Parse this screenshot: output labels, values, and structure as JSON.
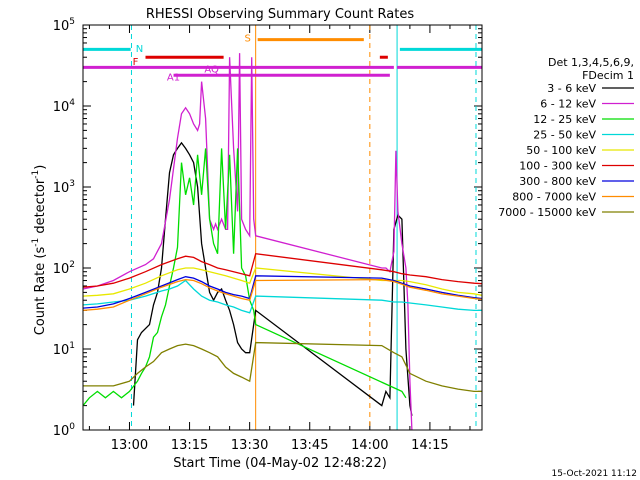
{
  "chart_data": {
    "type": "line",
    "title": "RHESSI Observing Summary Count Rates",
    "xlabel": "Start Time (04-May-02 12:48:22)",
    "ylabel_parts": [
      "Count Rate (s",
      "-1",
      " detector",
      "-1",
      ")"
    ],
    "timestamp": "15-Oct-2021 11:12",
    "log_y": true,
    "xlim": [
      48.4,
      148.0
    ],
    "ylim": [
      1,
      100000
    ],
    "x_ticks": [
      {
        "value": 60,
        "label": "13:00"
      },
      {
        "value": 75,
        "label": "13:15"
      },
      {
        "value": 90,
        "label": "13:30"
      },
      {
        "value": 105,
        "label": "13:45"
      },
      {
        "value": 120,
        "label": "14:00"
      },
      {
        "value": 135,
        "label": "14:15"
      }
    ],
    "y_ticks": [
      {
        "value": 1,
        "base": "10",
        "exp": "0"
      },
      {
        "value": 10,
        "base": "10",
        "exp": "1"
      },
      {
        "value": 100,
        "base": "10",
        "exp": "2"
      },
      {
        "value": 1000,
        "base": "10",
        "exp": "3"
      },
      {
        "value": 10000,
        "base": "10",
        "exp": "4"
      },
      {
        "value": 100000,
        "base": "10",
        "exp": "5"
      }
    ],
    "legend_header": [
      "Det 1,3,4,5,6,9,",
      "FDecim 1"
    ],
    "legend_placement": "right",
    "series": [
      {
        "name": "3 - 6 keV",
        "color": "#000000",
        "x": [
          61,
          62,
          63,
          65,
          66,
          67,
          68,
          69,
          70,
          71,
          72,
          73,
          74,
          75,
          76,
          77,
          78,
          79,
          80,
          81,
          82,
          83,
          84,
          85,
          86,
          87,
          88,
          89,
          90,
          91.5,
          123,
          124,
          125,
          126,
          127,
          128,
          129,
          130,
          130.5
        ],
        "y": [
          2,
          13,
          16,
          20,
          35,
          50,
          100,
          400,
          1500,
          2500,
          3000,
          3500,
          3000,
          2500,
          2000,
          1000,
          200,
          100,
          50,
          40,
          50,
          55,
          40,
          30,
          20,
          12,
          10,
          9,
          9,
          30,
          2,
          3,
          2.5,
          300,
          450,
          400,
          10,
          2,
          1.5
        ]
      },
      {
        "name": "6 - 12 keV",
        "color": "#d020d0",
        "x": [
          48.4,
          52,
          56,
          60,
          64,
          66,
          68,
          70,
          72,
          73,
          74,
          75,
          76,
          77,
          77.5,
          78,
          79,
          80,
          81,
          81.5,
          82,
          83,
          84,
          84.5,
          85,
          86,
          87,
          87.5,
          88,
          89,
          90,
          90.5,
          91,
          91.5,
          123,
          124,
          125,
          126,
          126.5,
          127,
          128,
          129,
          129.5,
          130,
          130.5
        ],
        "y": [
          55,
          60,
          70,
          90,
          110,
          130,
          200,
          700,
          4000,
          8000,
          9500,
          8000,
          6000,
          5000,
          6000,
          20000,
          7000,
          400,
          300,
          350,
          300,
          400,
          300,
          300,
          40000,
          3000,
          500,
          45000,
          400,
          300,
          250,
          40000,
          400,
          250,
          100,
          100,
          90,
          160,
          2800,
          500,
          200,
          100,
          35,
          4,
          1
        ]
      },
      {
        "name": "12 - 25 keV",
        "color": "#00dd00",
        "x": [
          48.4,
          50,
          52,
          54,
          56,
          58,
          60,
          62,
          63,
          64,
          65,
          66,
          67,
          68,
          69,
          70,
          71,
          72,
          73,
          74,
          75,
          76,
          77,
          78,
          79,
          80,
          81,
          82,
          83,
          84,
          85,
          86,
          87,
          88,
          89,
          90,
          91,
          91.5,
          128,
          129
        ],
        "y": [
          2,
          2.5,
          3,
          2.5,
          3,
          2.5,
          3,
          4,
          5,
          6,
          8,
          14,
          16,
          25,
          35,
          60,
          100,
          180,
          2000,
          800,
          1300,
          600,
          2500,
          800,
          3000,
          400,
          200,
          150,
          3000,
          300,
          2500,
          150,
          3000,
          100,
          80,
          40,
          30,
          20,
          3,
          2.5
        ]
      },
      {
        "name": "25 - 50 keV",
        "color": "#00d8d8",
        "x": [
          48.4,
          52,
          56,
          60,
          64,
          68,
          70,
          72,
          74,
          76,
          78,
          80,
          82,
          84,
          86,
          88,
          90,
          91.5,
          123,
          126,
          128,
          130,
          134,
          138,
          142,
          146,
          148
        ],
        "y": [
          35,
          36,
          38,
          40,
          45,
          52,
          55,
          60,
          70,
          55,
          45,
          40,
          38,
          35,
          33,
          30,
          28,
          45,
          40,
          38,
          38,
          37,
          35,
          33,
          31,
          30,
          30
        ]
      },
      {
        "name": "50 - 100 keV",
        "color": "#e8e800",
        "x": [
          48.4,
          52,
          56,
          60,
          64,
          68,
          72,
          74,
          76,
          78,
          80,
          82,
          84,
          86,
          88,
          90,
          91.5,
          123,
          126,
          128,
          130,
          134,
          138,
          142,
          146,
          148
        ],
        "y": [
          45,
          46,
          48,
          55,
          65,
          80,
          95,
          100,
          100,
          95,
          90,
          85,
          80,
          75,
          70,
          65,
          100,
          70,
          70,
          70,
          68,
          62,
          55,
          50,
          48,
          46
        ]
      },
      {
        "name": "100 - 300 keV",
        "color": "#dd0000",
        "x": [
          48.4,
          52,
          56,
          60,
          64,
          68,
          72,
          74,
          76,
          78,
          80,
          82,
          84,
          86,
          88,
          90,
          91.5,
          123,
          126,
          128,
          130,
          134,
          138,
          142,
          146,
          148
        ],
        "y": [
          58,
          60,
          65,
          75,
          90,
          110,
          130,
          140,
          135,
          120,
          110,
          100,
          95,
          90,
          85,
          80,
          150,
          95,
          90,
          85,
          82,
          78,
          72,
          68,
          65,
          64
        ]
      },
      {
        "name": "300 - 800 keV",
        "color": "#0000dd",
        "x": [
          48.4,
          52,
          56,
          60,
          64,
          68,
          72,
          74,
          76,
          78,
          80,
          82,
          84,
          86,
          88,
          90,
          91.5,
          123,
          126,
          128,
          130,
          134,
          138,
          142,
          146,
          148
        ],
        "y": [
          32,
          33,
          36,
          42,
          50,
          60,
          72,
          78,
          75,
          68,
          60,
          55,
          50,
          47,
          45,
          42,
          80,
          75,
          70,
          65,
          60,
          55,
          50,
          46,
          43,
          42
        ]
      },
      {
        "name": "800 - 7000 keV",
        "color": "#ff8c00",
        "x": [
          48.4,
          52,
          56,
          60,
          64,
          68,
          72,
          74,
          76,
          78,
          80,
          82,
          84,
          86,
          88,
          90,
          91.5,
          123,
          126,
          128,
          130,
          134,
          138,
          142,
          146,
          148
        ],
        "y": [
          30,
          31,
          33,
          40,
          48,
          58,
          68,
          72,
          70,
          64,
          57,
          52,
          48,
          45,
          42,
          40,
          70,
          72,
          68,
          63,
          58,
          53,
          48,
          45,
          42,
          41
        ]
      },
      {
        "name": "7000 - 15000 keV",
        "color": "#808000",
        "x": [
          48.4,
          52,
          56,
          60,
          62,
          64,
          66,
          68,
          70,
          72,
          74,
          76,
          78,
          80,
          82,
          84,
          86,
          88,
          90,
          91.5,
          123,
          126,
          128,
          130,
          134,
          138,
          142,
          146,
          148
        ],
        "y": [
          3.5,
          3.5,
          3.5,
          4,
          5,
          6,
          7,
          9,
          10,
          11,
          11.5,
          11,
          10,
          9,
          8,
          6,
          5,
          4.5,
          4,
          12,
          11,
          9,
          8,
          5,
          4,
          3.5,
          3.2,
          3,
          3
        ]
      }
    ],
    "annotations": {
      "markers": [
        {
          "label": "N",
          "color": "#00d8d8"
        },
        {
          "label": "F",
          "color": "#dd0000"
        },
        {
          "label": "S",
          "color": "#ff8c00"
        },
        {
          "label": "AQ",
          "color": "#d020d0"
        },
        {
          "label": "A1",
          "color": "#d020d0"
        }
      ]
    }
  }
}
